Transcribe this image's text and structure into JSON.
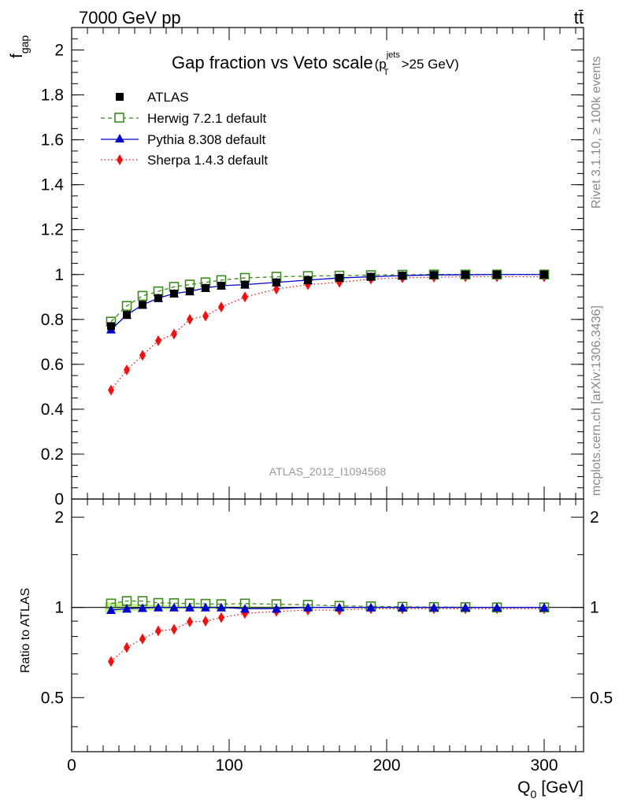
{
  "header": {
    "energy_label": "7000 GeV pp",
    "process_label": "tt̄"
  },
  "side": {
    "rivet_label": "Rivet 3.1.10, ≥ 100k events",
    "mcplots_label": "mcplots.cern.ch [arXiv:1306.3436]"
  },
  "analysis_label": "ATLAS_2012_I1094568",
  "chart_data": [
    {
      "type": "line",
      "title": "Gap fraction vs Veto scale",
      "title_suffix": {
        "open": "(p",
        "sup": "jets",
        "sub": "T",
        "close": ">25 GeV)"
      },
      "ylabel": {
        "main": "f",
        "sub": "gap"
      },
      "xlabel": "",
      "xlim": [
        0,
        325
      ],
      "ylim": [
        0,
        2.1
      ],
      "y_ticks": [
        0,
        0.2,
        0.4,
        0.6,
        0.8,
        1,
        1.2,
        1.4,
        1.6,
        1.8,
        2
      ],
      "y_tick_labels": [
        "0",
        "0.2",
        "0.4",
        "0.6",
        "0.8",
        "1",
        "1.2",
        "1.4",
        "1.6",
        "1.8",
        "2"
      ],
      "x": [
        25,
        35,
        45,
        55,
        65,
        75,
        85,
        95,
        110,
        130,
        150,
        170,
        190,
        210,
        230,
        250,
        270,
        300
      ],
      "series": [
        {
          "name": "ATLAS",
          "color": "#000000",
          "marker": "square-filled",
          "line": "none",
          "values": [
            0.77,
            0.82,
            0.865,
            0.895,
            0.915,
            0.925,
            0.94,
            0.95,
            0.955,
            0.965,
            0.975,
            0.985,
            0.99,
            0.995,
            0.998,
            0.999,
            1.0,
            1.0
          ]
        },
        {
          "name": "Herwig 7.2.1 default",
          "color": "#3a8a1c",
          "marker": "square-open",
          "line": "dashed",
          "values": [
            0.79,
            0.86,
            0.905,
            0.925,
            0.945,
            0.955,
            0.965,
            0.975,
            0.985,
            0.99,
            0.993,
            0.995,
            0.997,
            0.999,
            1.0,
            1.0,
            1.0,
            1.0
          ]
        },
        {
          "name": "Pythia 8.308 default",
          "color": "#0000cc",
          "marker": "triangle-filled",
          "line": "solid",
          "values": [
            0.755,
            0.82,
            0.865,
            0.895,
            0.915,
            0.925,
            0.94,
            0.95,
            0.955,
            0.965,
            0.975,
            0.985,
            0.99,
            0.995,
            0.998,
            0.999,
            1.0,
            1.0
          ]
        },
        {
          "name": "Sherpa 1.4.3 default",
          "color": "#ee1111",
          "marker": "diamond-filled",
          "line": "dotted",
          "values": [
            0.485,
            0.575,
            0.64,
            0.705,
            0.735,
            0.8,
            0.815,
            0.855,
            0.9,
            0.935,
            0.955,
            0.965,
            0.98,
            0.985,
            0.988,
            0.99,
            0.99,
            0.99
          ]
        }
      ]
    },
    {
      "type": "line",
      "title": "",
      "ylabel": "Ratio to ATLAS",
      "xlabel": "Q",
      "xlabel_sub": "0",
      "xlabel_unit": "[GeV]",
      "xlim": [
        0,
        325
      ],
      "ylim": [
        0.33,
        2.3
      ],
      "y_scale": "log",
      "y_ticks": [
        0.5,
        1,
        2
      ],
      "y_tick_labels": [
        "0.5",
        "1",
        "2"
      ],
      "x_ticks": [
        0,
        100,
        200,
        300
      ],
      "x_tick_labels": [
        "0",
        "100",
        "200",
        "300"
      ],
      "x": [
        25,
        35,
        45,
        55,
        65,
        75,
        85,
        95,
        110,
        130,
        150,
        170,
        190,
        210,
        230,
        250,
        270,
        300
      ],
      "band": {
        "name": "ATLAS uncertainty",
        "color": "#c8f090",
        "lo": [
          0.96,
          0.97,
          0.975,
          0.98,
          0.985,
          0.99,
          0.99,
          0.99,
          0.992,
          0.994,
          0.996,
          0.997,
          0.998,
          0.998,
          0.999,
          0.999,
          0.999,
          0.999
        ],
        "hi": [
          1.04,
          1.03,
          1.025,
          1.02,
          1.015,
          1.01,
          1.01,
          1.01,
          1.008,
          1.006,
          1.004,
          1.003,
          1.002,
          1.002,
          1.001,
          1.001,
          1.001,
          1.001
        ]
      },
      "series": [
        {
          "name": "Herwig 7.2.1 default",
          "color": "#3a8a1c",
          "marker": "square-open",
          "line": "dashed",
          "values": [
            1.03,
            1.05,
            1.05,
            1.035,
            1.033,
            1.03,
            1.028,
            1.025,
            1.03,
            1.025,
            1.02,
            1.012,
            1.008,
            1.005,
            1.003,
            1.002,
            1.0,
            1.0
          ]
        },
        {
          "name": "Pythia 8.308 default",
          "color": "#0000cc",
          "marker": "triangle-filled",
          "line": "solid",
          "values": [
            0.98,
            0.99,
            0.995,
            1.0,
            1.0,
            1.0,
            1.0,
            1.0,
            0.99,
            0.99,
            1.0,
            1.0,
            1.0,
            1.0,
            1.0,
            1.0,
            1.0,
            1.0
          ]
        },
        {
          "name": "Sherpa 1.4.3 default",
          "color": "#ee1111",
          "marker": "diamond-filled",
          "line": "dotted",
          "values": [
            0.66,
            0.735,
            0.785,
            0.835,
            0.845,
            0.895,
            0.9,
            0.925,
            0.955,
            0.97,
            0.98,
            0.98,
            0.99,
            0.99,
            0.99,
            0.99,
            0.99,
            0.99
          ]
        }
      ]
    }
  ]
}
